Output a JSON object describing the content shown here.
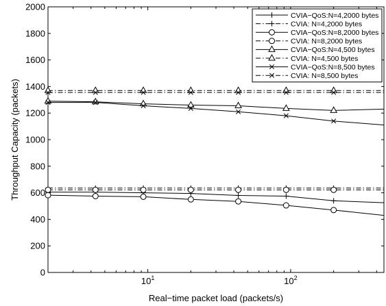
{
  "chart_data": {
    "type": "line",
    "title": "",
    "xlabel": "Real−time packet load (packets/s)",
    "ylabel": "Throughput Capacity (packets)",
    "xscale": "log",
    "xlim": [
      2,
      450
    ],
    "ylim": [
      0,
      2000
    ],
    "yticks": [
      0,
      200,
      400,
      600,
      800,
      1000,
      1200,
      1400,
      1600,
      1800,
      2000
    ],
    "xticks": [
      {
        "base": "10",
        "exp": "1",
        "value": 10
      },
      {
        "base": "10",
        "exp": "2",
        "value": 100
      }
    ],
    "grid": false,
    "legend_position": "top-right",
    "colors": {
      "line": "#000000",
      "background": "#ffffff"
    },
    "series": [
      {
        "name": "CVIA−QoS:N=4,2000 bytes",
        "marker": "plus",
        "linestyle": "solid",
        "x": [
          2,
          4.3,
          9.3,
          20,
          43,
          93,
          200,
          450
        ],
        "y": [
          605,
          605,
          600,
          595,
          580,
          575,
          540,
          525
        ]
      },
      {
        "name": "CVIA: N=4,2000 bytes",
        "marker": "plus",
        "linestyle": "dashdot",
        "x": [
          2,
          4.3,
          9.3,
          20,
          43,
          93,
          200,
          450
        ],
        "y": [
          635,
          635,
          635,
          635,
          635,
          635,
          635,
          635
        ]
      },
      {
        "name": "CVIA−QoS:N=8,2000 bytes",
        "marker": "circle",
        "linestyle": "solid",
        "x": [
          2,
          4.3,
          9.3,
          20,
          43,
          93,
          200,
          450
        ],
        "y": [
          582,
          575,
          570,
          550,
          535,
          505,
          470,
          430
        ]
      },
      {
        "name": "CVIA: N=8,2000 bytes",
        "marker": "circle",
        "linestyle": "dashdot",
        "x": [
          2,
          4.3,
          9.3,
          20,
          43,
          93,
          200,
          450
        ],
        "y": [
          622,
          622,
          622,
          622,
          622,
          622,
          622,
          622
        ]
      },
      {
        "name": "CVIA−QoS:N=4,500 bytes",
        "marker": "triangle",
        "linestyle": "solid",
        "x": [
          2,
          4.3,
          9.3,
          20,
          43,
          93,
          200,
          450
        ],
        "y": [
          1290,
          1285,
          1270,
          1260,
          1255,
          1235,
          1220,
          1230
        ]
      },
      {
        "name": "CVIA: N=4,500 bytes",
        "marker": "triangle",
        "linestyle": "dashdot",
        "x": [
          2,
          4.3,
          9.3,
          20,
          43,
          93,
          200,
          450
        ],
        "y": [
          1370,
          1370,
          1370,
          1370,
          1370,
          1370,
          1370,
          1370
        ]
      },
      {
        "name": "CVIA−QoS:N=8,500 bytes",
        "marker": "x",
        "linestyle": "solid",
        "x": [
          2,
          4.3,
          9.3,
          20,
          43,
          93,
          200,
          450
        ],
        "y": [
          1280,
          1280,
          1255,
          1235,
          1210,
          1180,
          1140,
          1110
        ]
      },
      {
        "name": "CVIA: N=8,500 bytes",
        "marker": "x",
        "linestyle": "dashdot",
        "x": [
          2,
          4.3,
          9.3,
          20,
          43,
          93,
          200,
          450
        ],
        "y": [
          1355,
          1355,
          1355,
          1355,
          1355,
          1355,
          1355,
          1355
        ]
      }
    ]
  }
}
